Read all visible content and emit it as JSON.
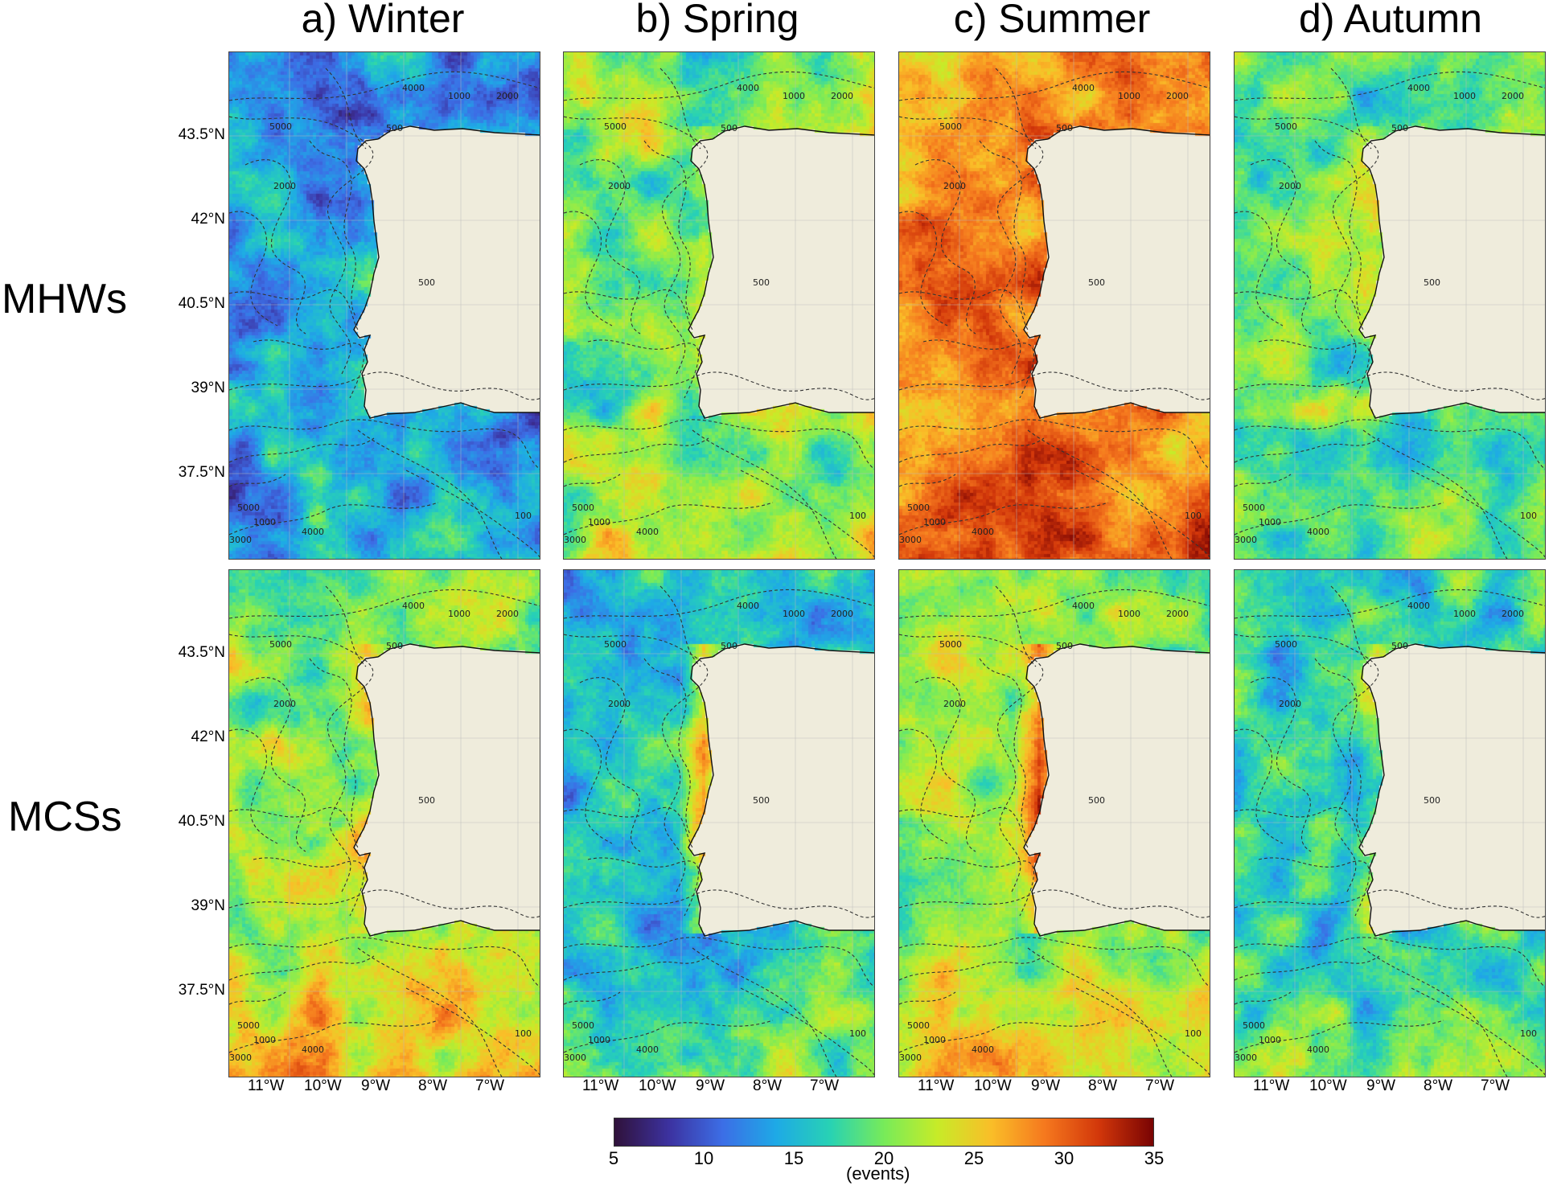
{
  "columns": [
    {
      "id": "winter",
      "title": "a) Winter"
    },
    {
      "id": "spring",
      "title": "b) Spring"
    },
    {
      "id": "summer",
      "title": "c) Summer"
    },
    {
      "id": "autumn",
      "title": "d) Autumn"
    }
  ],
  "rows": [
    {
      "id": "mhws",
      "label": "MHWs"
    },
    {
      "id": "mcss",
      "label": "MCSs"
    }
  ],
  "lat_ticks": [
    "43.5°N",
    "42°N",
    "40.5°N",
    "39°N",
    "37.5°N"
  ],
  "lon_ticks": [
    "11°W",
    "10°W",
    "9°W",
    "8°W",
    "7°W"
  ],
  "contour_labels": [
    "4000",
    "1000",
    "2000",
    "5000",
    "500",
    "2000",
    "500",
    "5000",
    "1000",
    "4000",
    "3000",
    "100"
  ],
  "colorbar": {
    "min": 5,
    "max": 35,
    "ticks": [
      "5",
      "10",
      "15",
      "20",
      "25",
      "30",
      "35"
    ],
    "label": "(events)",
    "colormap": "jet"
  },
  "map_colors": {
    "land": "#efecdc",
    "coastline": "#111111",
    "bathymetry_contours": "#333333",
    "grid": "#bbbbbb"
  },
  "chart_data": {
    "type": "heatmap",
    "variable": "event count",
    "unit": "events",
    "lat_range": [
      36.1,
      44.4
    ],
    "lon_range": [
      -12.2,
      -6.6
    ],
    "panels": [
      {
        "row": "MHWs",
        "column": "a) Winter",
        "typical_value_range": [
          8,
          20
        ]
      },
      {
        "row": "MHWs",
        "column": "b) Spring",
        "typical_value_range": [
          14,
          28
        ]
      },
      {
        "row": "MHWs",
        "column": "c) Summer",
        "typical_value_range": [
          22,
          34
        ]
      },
      {
        "row": "MHWs",
        "column": "d) Autumn",
        "typical_value_range": [
          13,
          26
        ]
      },
      {
        "row": "MCSs",
        "column": "a) Winter",
        "typical_value_range": [
          14,
          29
        ]
      },
      {
        "row": "MCSs",
        "column": "b) Spring",
        "typical_value_range": [
          10,
          30
        ]
      },
      {
        "row": "MCSs",
        "column": "c) Summer",
        "typical_value_range": [
          15,
          32
        ]
      },
      {
        "row": "MCSs",
        "column": "d) Autumn",
        "typical_value_range": [
          9,
          27
        ]
      }
    ]
  }
}
